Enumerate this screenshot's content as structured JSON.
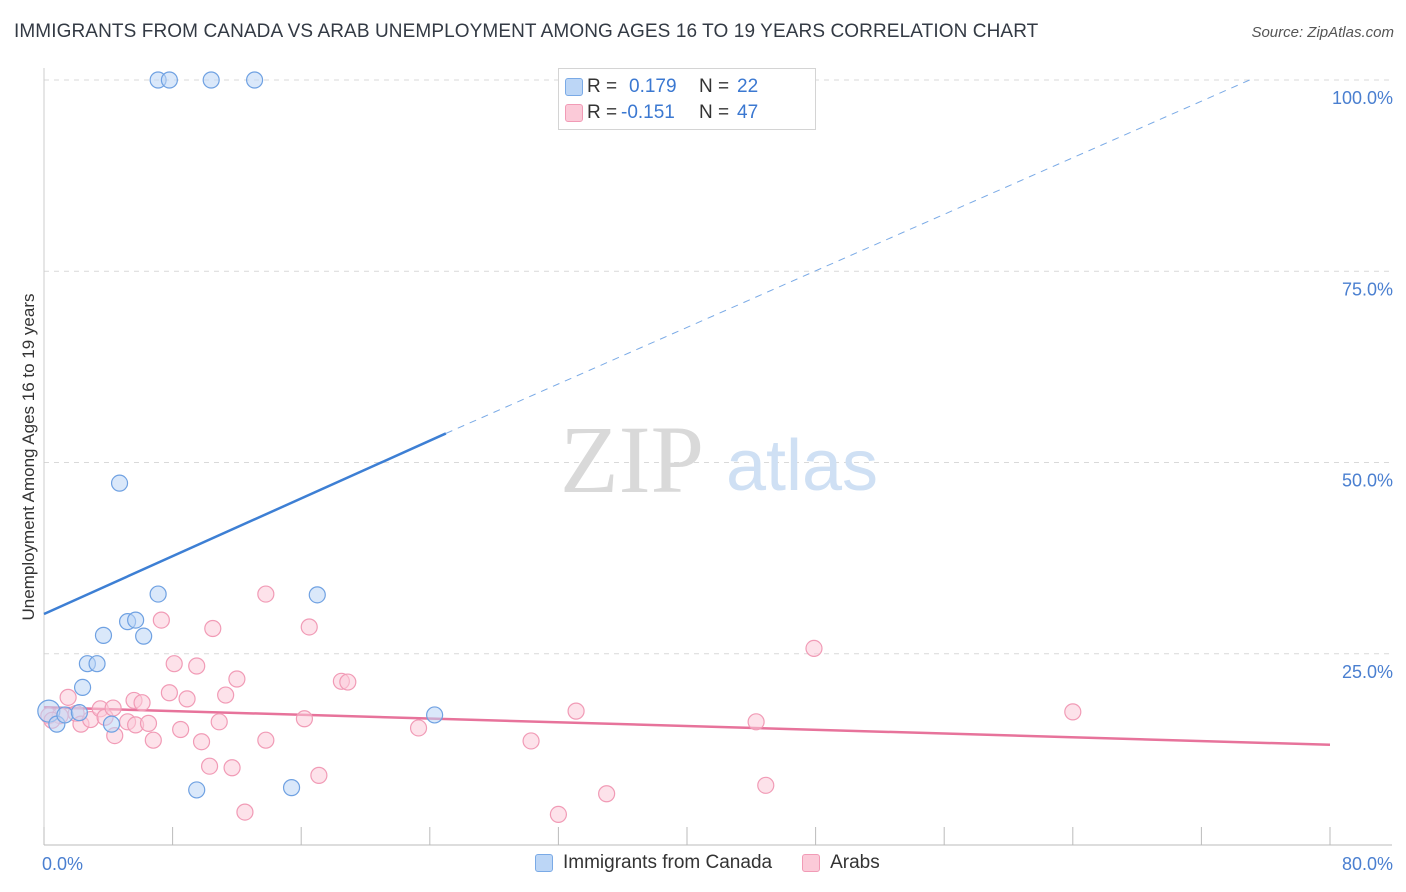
{
  "title": "IMMIGRANTS FROM CANADA VS ARAB UNEMPLOYMENT AMONG AGES 16 TO 19 YEARS CORRELATION CHART",
  "source": "Source: ZipAtlas.com",
  "watermark": {
    "zip": "ZIP",
    "atlas": "atlas"
  },
  "colors": {
    "blue": "#4a86d6",
    "blue_fill": "#bcd6f6",
    "pink": "#e7739b",
    "pink_fill": "#fbcad8",
    "axis_text": "#4a7fd0"
  },
  "legend_box": {
    "blue": {
      "r_label": "R =",
      "r_value": "0.179",
      "n_label": "N =",
      "n_value": "22"
    },
    "pink": {
      "r_label": "R =",
      "r_value": "-0.151",
      "n_label": "N =",
      "n_value": "47"
    }
  },
  "legend_bottom": {
    "blue": "Immigrants from Canada",
    "pink": "Arabs"
  },
  "chart_data": {
    "type": "scatter",
    "title": "IMMIGRANTS FROM CANADA VS ARAB UNEMPLOYMENT AMONG AGES 16 TO 19 YEARS CORRELATION CHART",
    "xlabel": "",
    "ylabel": "Unemployment Among Ages 16 to 19 years",
    "xlim": [
      0,
      80
    ],
    "ylim": [
      0,
      100
    ],
    "x_tick_labels": [
      "0.0%",
      "80.0%"
    ],
    "y_tick_labels": [
      "100.0%",
      "75.0%",
      "50.0%",
      "25.0%"
    ],
    "y_ticks": [
      100,
      75,
      50,
      25
    ],
    "series": [
      {
        "name": "Immigrants from Canada",
        "color": "#4a86d6",
        "points": [
          [
            0.3,
            17.5
          ],
          [
            0.8,
            15.8
          ],
          [
            1.3,
            17.0
          ],
          [
            2.2,
            17.3
          ],
          [
            2.4,
            20.6
          ],
          [
            2.7,
            23.7
          ],
          [
            3.3,
            23.7
          ],
          [
            3.7,
            27.4
          ],
          [
            4.2,
            15.8
          ],
          [
            4.7,
            47.3
          ],
          [
            5.2,
            29.2
          ],
          [
            5.7,
            29.4
          ],
          [
            6.2,
            27.3
          ],
          [
            7.1,
            32.8
          ],
          [
            9.5,
            7.2
          ],
          [
            17.0,
            32.7
          ],
          [
            15.4,
            7.5
          ],
          [
            24.3,
            17.0
          ],
          [
            7.1,
            100
          ],
          [
            7.8,
            100
          ],
          [
            10.4,
            100
          ],
          [
            13.1,
            100
          ]
        ],
        "trend": {
          "x": [
            0,
            25
          ],
          "y": [
            30.2,
            53.8
          ],
          "dashed_extension_to": [
            75,
            100
          ]
        }
      },
      {
        "name": "Arabs",
        "color": "#e7739b",
        "points": [
          [
            0.3,
            16.9
          ],
          [
            1.0,
            16.9
          ],
          [
            1.5,
            19.3
          ],
          [
            2.0,
            17.2
          ],
          [
            2.3,
            15.8
          ],
          [
            2.9,
            16.4
          ],
          [
            3.5,
            17.8
          ],
          [
            3.8,
            16.7
          ],
          [
            4.3,
            17.9
          ],
          [
            4.4,
            14.3
          ],
          [
            5.2,
            16.1
          ],
          [
            5.6,
            18.9
          ],
          [
            5.7,
            15.7
          ],
          [
            6.1,
            18.6
          ],
          [
            6.5,
            15.9
          ],
          [
            6.8,
            13.7
          ],
          [
            7.3,
            29.4
          ],
          [
            7.8,
            19.9
          ],
          [
            8.1,
            23.7
          ],
          [
            8.5,
            15.1
          ],
          [
            8.9,
            19.1
          ],
          [
            9.5,
            23.4
          ],
          [
            9.8,
            13.5
          ],
          [
            10.3,
            10.3
          ],
          [
            10.5,
            28.3
          ],
          [
            10.9,
            16.1
          ],
          [
            11.3,
            19.6
          ],
          [
            11.7,
            10.1
          ],
          [
            12.0,
            21.7
          ],
          [
            12.5,
            4.3
          ],
          [
            13.8,
            13.7
          ],
          [
            13.8,
            32.8
          ],
          [
            16.2,
            16.5
          ],
          [
            16.5,
            28.5
          ],
          [
            17.1,
            9.1
          ],
          [
            18.5,
            21.4
          ],
          [
            18.9,
            21.3
          ],
          [
            23.3,
            15.3
          ],
          [
            30.3,
            13.6
          ],
          [
            32.0,
            4.0
          ],
          [
            33.1,
            17.5
          ],
          [
            35.0,
            6.7
          ],
          [
            44.3,
            16.1
          ],
          [
            44.9,
            7.8
          ],
          [
            47.9,
            25.7
          ],
          [
            64.0,
            17.4
          ],
          [
            0.5,
            16.3
          ]
        ],
        "trend": {
          "x": [
            0,
            80
          ],
          "y": [
            18.0,
            13.1
          ]
        }
      }
    ]
  }
}
